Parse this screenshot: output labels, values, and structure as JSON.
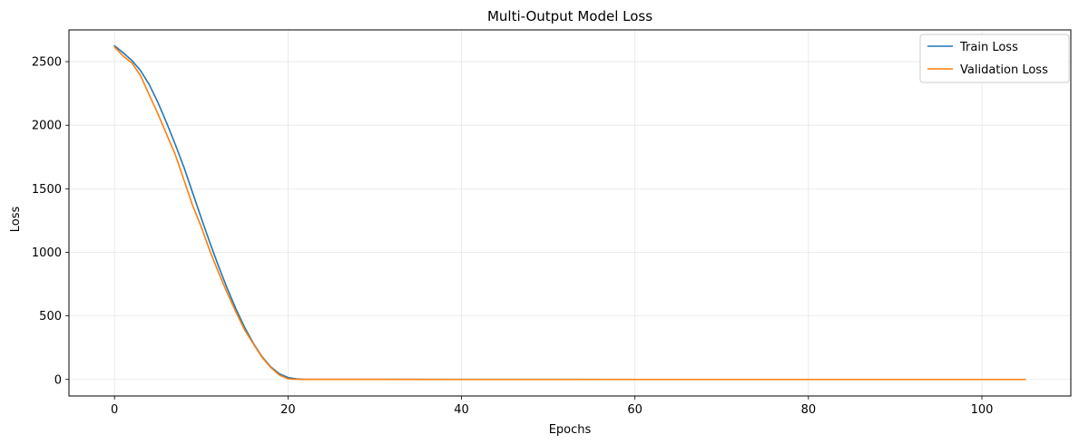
{
  "chart_data": {
    "type": "line",
    "title": "Multi-Output Model Loss",
    "xlabel": "Epochs",
    "ylabel": "Loss",
    "xlim": [
      -5.25,
      110.25
    ],
    "ylim": [
      -130,
      2750
    ],
    "xticks": [
      0,
      20,
      40,
      60,
      80,
      100
    ],
    "yticks": [
      0,
      500,
      1000,
      1500,
      2000,
      2500
    ],
    "grid": true,
    "legend_position": "top-right",
    "series": [
      {
        "name": "Train Loss",
        "color": "#1f77b4",
        "points": [
          [
            0,
            2625
          ],
          [
            1,
            2570
          ],
          [
            2,
            2510
          ],
          [
            3,
            2430
          ],
          [
            4,
            2320
          ],
          [
            5,
            2180
          ],
          [
            6,
            2020
          ],
          [
            7,
            1850
          ],
          [
            8,
            1670
          ],
          [
            9,
            1470
          ],
          [
            10,
            1270
          ],
          [
            11,
            1075
          ],
          [
            12,
            890
          ],
          [
            13,
            715
          ],
          [
            14,
            555
          ],
          [
            15,
            410
          ],
          [
            16,
            285
          ],
          [
            17,
            180
          ],
          [
            18,
            100
          ],
          [
            19,
            45
          ],
          [
            20,
            15
          ],
          [
            21,
            4
          ],
          [
            22,
            1
          ],
          [
            23,
            0.5
          ],
          [
            25,
            0.4
          ],
          [
            30,
            0.3
          ],
          [
            40,
            0.3
          ],
          [
            60,
            0.2
          ],
          [
            80,
            0.2
          ],
          [
            105,
            0.2
          ]
        ]
      },
      {
        "name": "Validation Loss",
        "color": "#ff7f0e",
        "points": [
          [
            0,
            2615
          ],
          [
            1,
            2545
          ],
          [
            2,
            2490
          ],
          [
            3,
            2390
          ],
          [
            4,
            2240
          ],
          [
            5,
            2090
          ],
          [
            6,
            1930
          ],
          [
            7,
            1770
          ],
          [
            8,
            1570
          ],
          [
            9,
            1370
          ],
          [
            10,
            1200
          ],
          [
            11,
            1010
          ],
          [
            12,
            840
          ],
          [
            13,
            680
          ],
          [
            14,
            530
          ],
          [
            15,
            390
          ],
          [
            16,
            280
          ],
          [
            17,
            175
          ],
          [
            18,
            95
          ],
          [
            19,
            35
          ],
          [
            20,
            5
          ],
          [
            21,
            1
          ],
          [
            22,
            0.5
          ],
          [
            25,
            0.3
          ],
          [
            30,
            0.3
          ],
          [
            40,
            0.2
          ],
          [
            60,
            0.2
          ],
          [
            80,
            0.2
          ],
          [
            105,
            0.2
          ]
        ]
      }
    ]
  }
}
